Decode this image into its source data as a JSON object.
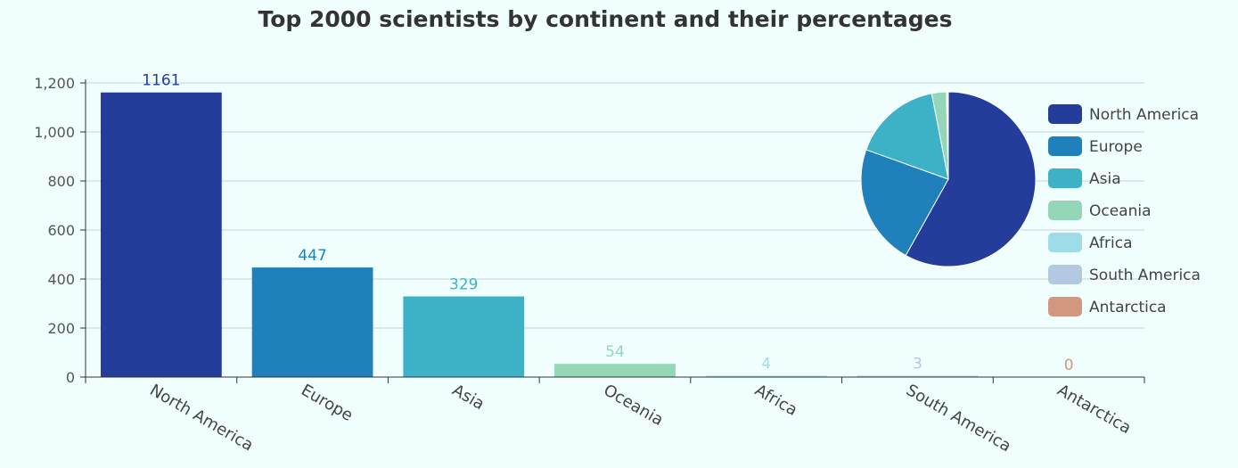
{
  "chart_data": [
    {
      "type": "bar",
      "title": "Top 2000 scientists by continent and their percentages",
      "categories": [
        "North America",
        "Europe",
        "Asia",
        "Oceania",
        "Africa",
        "South America",
        "Antarctica"
      ],
      "values": [
        1161,
        447,
        329,
        54,
        4,
        3,
        0
      ],
      "value_labels": [
        "1161",
        "447",
        "329",
        "54",
        "4",
        "3",
        "0"
      ],
      "ylim": [
        0,
        1200
      ],
      "yticks": [
        0,
        200,
        400,
        600,
        800,
        1000,
        1200
      ],
      "ytick_labels": [
        "0",
        "200",
        "400",
        "600",
        "800",
        "1,000",
        "1,200"
      ],
      "grid": true,
      "colors": [
        "#243c9a",
        "#1f80bb",
        "#3db2c6",
        "#94d6b8",
        "#9edce8",
        "#b3c9e2",
        "#d2977f"
      ]
    },
    {
      "type": "pie",
      "labels": [
        "North America",
        "Europe",
        "Asia",
        "Oceania",
        "Africa",
        "South America",
        "Antarctica"
      ],
      "values": [
        1161,
        447,
        329,
        54,
        4,
        3,
        0
      ],
      "legend_position": "right",
      "colors": [
        "#243c9a",
        "#1f80bb",
        "#3db2c6",
        "#94d6b8",
        "#9edce8",
        "#b3c9e2",
        "#d2977f"
      ]
    }
  ]
}
